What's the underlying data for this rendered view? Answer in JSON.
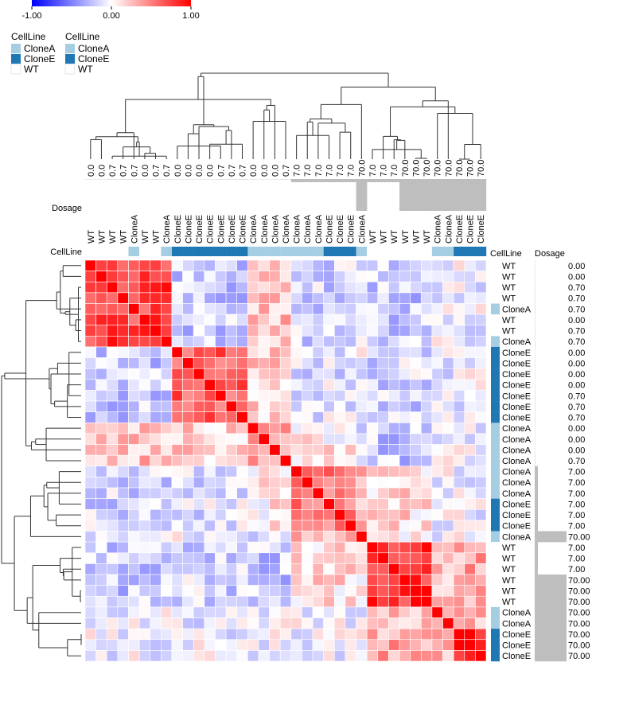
{
  "colors": {
    "low": "#0000ff",
    "mid": "#ffffff",
    "high": "#ff0000",
    "clone_a": "#a6cee3",
    "clone_e": "#1f78b4",
    "wt": "#ffffff",
    "dosage_bar": "#bebebe",
    "dendrogram": "#333333"
  },
  "colorbar": {
    "ticks": [
      "-1.00",
      "0.00",
      "1.00"
    ]
  },
  "legends": [
    {
      "title": "CellLine",
      "items": [
        "CloneA",
        "CloneE",
        "WT"
      ]
    },
    {
      "title": "CellLine",
      "items": [
        "CloneA",
        "CloneE",
        "WT"
      ]
    }
  ],
  "annotation_titles": {
    "dosage_left": "Dosage",
    "cellline_left": "CellLine",
    "cellline_right": "CellLine",
    "dosage_right": "Dosage"
  },
  "chart_data": {
    "type": "heatmap",
    "title": "",
    "value_range": [
      -1,
      1
    ],
    "samples": [
      {
        "cellline": "WT",
        "dosage": "0.00"
      },
      {
        "cellline": "WT",
        "dosage": "0.00"
      },
      {
        "cellline": "WT",
        "dosage": "0.70"
      },
      {
        "cellline": "WT",
        "dosage": "0.70"
      },
      {
        "cellline": "CloneA",
        "dosage": "0.70"
      },
      {
        "cellline": "WT",
        "dosage": "0.00"
      },
      {
        "cellline": "WT",
        "dosage": "0.70"
      },
      {
        "cellline": "CloneA",
        "dosage": "0.70"
      },
      {
        "cellline": "CloneE",
        "dosage": "0.00"
      },
      {
        "cellline": "CloneE",
        "dosage": "0.00"
      },
      {
        "cellline": "CloneE",
        "dosage": "0.00"
      },
      {
        "cellline": "CloneE",
        "dosage": "0.00"
      },
      {
        "cellline": "CloneE",
        "dosage": "0.70"
      },
      {
        "cellline": "CloneE",
        "dosage": "0.70"
      },
      {
        "cellline": "CloneE",
        "dosage": "0.70"
      },
      {
        "cellline": "CloneA",
        "dosage": "0.00"
      },
      {
        "cellline": "CloneA",
        "dosage": "0.00"
      },
      {
        "cellline": "CloneA",
        "dosage": "0.00"
      },
      {
        "cellline": "CloneA",
        "dosage": "0.70"
      },
      {
        "cellline": "CloneA",
        "dosage": "7.00"
      },
      {
        "cellline": "CloneA",
        "dosage": "7.00"
      },
      {
        "cellline": "CloneA",
        "dosage": "7.00"
      },
      {
        "cellline": "CloneE",
        "dosage": "7.00"
      },
      {
        "cellline": "CloneE",
        "dosage": "7.00"
      },
      {
        "cellline": "CloneE",
        "dosage": "7.00"
      },
      {
        "cellline": "CloneA",
        "dosage": "70.00"
      },
      {
        "cellline": "WT",
        "dosage": "7.00"
      },
      {
        "cellline": "WT",
        "dosage": "7.00"
      },
      {
        "cellline": "WT",
        "dosage": "7.00"
      },
      {
        "cellline": "WT",
        "dosage": "70.00"
      },
      {
        "cellline": "WT",
        "dosage": "70.00"
      },
      {
        "cellline": "WT",
        "dosage": "70.00"
      },
      {
        "cellline": "CloneA",
        "dosage": "70.00"
      },
      {
        "cellline": "CloneA",
        "dosage": "70.00"
      },
      {
        "cellline": "CloneE",
        "dosage": "70.00"
      },
      {
        "cellline": "CloneE",
        "dosage": "70.00"
      },
      {
        "cellline": "CloneE",
        "dosage": "70.00"
      }
    ],
    "column_dosage_labels": [
      "0.0",
      "0.0",
      "0.7",
      "0.7",
      "0.7",
      "0.0",
      "0.7",
      "0.7",
      "0.0",
      "0.0",
      "0.0",
      "0.0",
      "0.7",
      "0.7",
      "0.7",
      "0.0",
      "0.0",
      "0.0",
      "0.7",
      "7.0",
      "7.0",
      "7.0",
      "7.0",
      "7.0",
      "7.0",
      "70.0",
      "7.0",
      "7.0",
      "7.0",
      "70.0",
      "70.0",
      "70.0",
      "70.0",
      "70.0",
      "70.0",
      "70.0",
      "70.0"
    ],
    "dosage_values": [
      0,
      0,
      0.7,
      0.7,
      0.7,
      0,
      0.7,
      0.7,
      0,
      0,
      0,
      0,
      0.7,
      0.7,
      0.7,
      0,
      0,
      0,
      0.7,
      7,
      7,
      7,
      7,
      7,
      7,
      70,
      7,
      7,
      7,
      70,
      70,
      70,
      70,
      70,
      70,
      70,
      70
    ],
    "cluster_blocks": [
      {
        "start": 0,
        "end": 7,
        "within": 0.75
      },
      {
        "start": 8,
        "end": 14,
        "within": 0.62
      },
      {
        "start": 15,
        "end": 18,
        "within": 0.45
      },
      {
        "start": 19,
        "end": 24,
        "within": 0.55
      },
      {
        "start": 25,
        "end": 25,
        "within": 1.0
      },
      {
        "start": 26,
        "end": 31,
        "within": 0.8
      },
      {
        "start": 32,
        "end": 33,
        "within": 0.4
      },
      {
        "start": 34,
        "end": 36,
        "within": 0.95
      }
    ],
    "block_relations": [
      [
        0,
        2,
        0.25
      ],
      [
        0,
        1,
        -0.2
      ],
      [
        1,
        2,
        0.2
      ],
      [
        3,
        4,
        0.3
      ],
      [
        3,
        5,
        0.15
      ],
      [
        5,
        6,
        0.25
      ],
      [
        5,
        7,
        0.35
      ],
      [
        6,
        7,
        0.25
      ],
      [
        0,
        5,
        -0.2
      ],
      [
        1,
        5,
        -0.15
      ],
      [
        2,
        5,
        -0.2
      ],
      [
        0,
        3,
        -0.15
      ],
      [
        1,
        3,
        -0.1
      ],
      [
        2,
        3,
        0.1
      ],
      [
        4,
        5,
        0.1
      ],
      [
        4,
        7,
        0.1
      ]
    ]
  }
}
